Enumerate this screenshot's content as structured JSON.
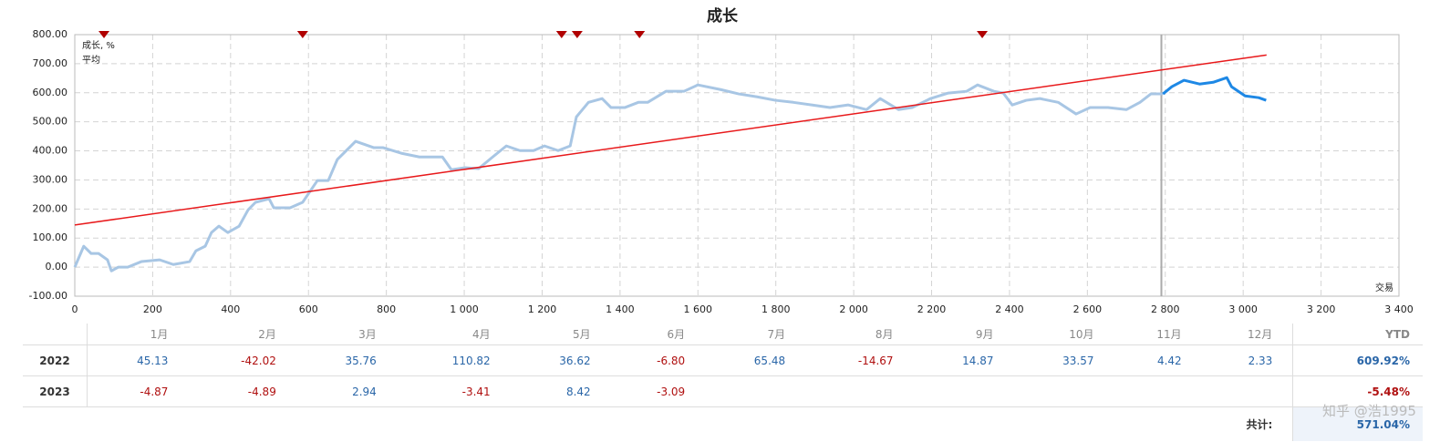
{
  "chart_data": {
    "type": "line",
    "title": "成长",
    "x_label": "交易",
    "grid": true,
    "legend": "top-left",
    "xlim": [
      0,
      3400
    ],
    "xticks": [
      0,
      200,
      400,
      600,
      800,
      {
        "value": 1000,
        "label": "1 000"
      },
      {
        "value": 1200,
        "label": "1 200"
      },
      {
        "value": 1400,
        "label": "1 400"
      },
      {
        "value": 1600,
        "label": "1 600"
      },
      {
        "value": 1800,
        "label": "1 800"
      },
      {
        "value": 2000,
        "label": "2 000"
      },
      {
        "value": 2200,
        "label": "2 200"
      },
      {
        "value": 2400,
        "label": "2 400"
      },
      {
        "value": 2600,
        "label": "2 600"
      },
      {
        "value": 2800,
        "label": "2 800"
      },
      {
        "value": 3000,
        "label": "3 000"
      },
      {
        "value": 3200,
        "label": "3 200"
      },
      {
        "value": 3400,
        "label": "3 400"
      }
    ],
    "ylim": [
      -100,
      800
    ],
    "yticks": [
      {
        "value": -100,
        "label": "-100.00"
      },
      {
        "value": 0,
        "label": "0.00"
      },
      {
        "value": 100,
        "label": "100.00"
      },
      {
        "value": 200,
        "label": "200.00"
      },
      {
        "value": 300,
        "label": "300.00"
      },
      {
        "value": 400,
        "label": "400.00"
      },
      {
        "value": 500,
        "label": "500.00"
      },
      {
        "value": 600,
        "label": "600.00"
      },
      {
        "value": 700,
        "label": "700.00"
      },
      {
        "value": 800,
        "label": "800.00"
      }
    ],
    "marker_line_x": 2790,
    "recent_color": "#1e88e5",
    "event_color": "#b00000",
    "events_x": [
      75,
      585,
      1250,
      1290,
      1450,
      2330
    ],
    "series": [
      {
        "name": "成长, %",
        "color": "#a8c6e4",
        "legend_color": "#1e6fc0",
        "x": [
          0,
          23,
          42,
          61,
          84,
          94,
          112,
          136,
          171,
          218,
          253,
          295,
          311,
          335,
          351,
          370,
          393,
          422,
          445,
          464,
          499,
          511,
          553,
          585,
          623,
          651,
          674,
          721,
          768,
          792,
          838,
          885,
          944,
          967,
          1002,
          1037,
          1073,
          1108,
          1143,
          1178,
          1206,
          1241,
          1272,
          1288,
          1319,
          1354,
          1377,
          1412,
          1447,
          1471,
          1518,
          1564,
          1600,
          1658,
          1705,
          1752,
          1799,
          1845,
          1892,
          1939,
          1986,
          2033,
          2068,
          2115,
          2150,
          2197,
          2243,
          2290,
          2318,
          2360,
          2384,
          2407,
          2443,
          2478,
          2525,
          2571,
          2607,
          2653,
          2700,
          2735,
          2763,
          2794,
          2817,
          2848,
          2888,
          2923,
          2958,
          2970,
          3005,
          3040,
          3059
        ],
        "values": [
          0,
          72,
          47,
          47,
          25,
          -13,
          0,
          0,
          19,
          25,
          9,
          19,
          56,
          72,
          119,
          141,
          119,
          141,
          197,
          223,
          235,
          204,
          204,
          223,
          298,
          298,
          370,
          433,
          411,
          411,
          392,
          379,
          379,
          335,
          342,
          339,
          379,
          417,
          401,
          401,
          417,
          401,
          417,
          517,
          567,
          580,
          549,
          549,
          567,
          567,
          605,
          605,
          627,
          611,
          596,
          586,
          574,
          567,
          558,
          549,
          558,
          542,
          580,
          542,
          549,
          580,
          599,
          605,
          627,
          605,
          599,
          558,
          574,
          580,
          567,
          527,
          549,
          549,
          542,
          567,
          596,
          596,
          621,
          643,
          630,
          636,
          652,
          621,
          589,
          583,
          574
        ]
      },
      {
        "name": "平均",
        "color": "#e8191b",
        "x": [
          0,
          3060
        ],
        "values": [
          145,
          730
        ]
      }
    ]
  },
  "table": {
    "headers": [
      "1月",
      "2月",
      "3月",
      "4月",
      "5月",
      "6月",
      "7月",
      "8月",
      "9月",
      "10月",
      "11月",
      "12月",
      "YTD"
    ],
    "rows": [
      {
        "year": "2022",
        "values": [
          "45.13",
          "-42.02",
          "35.76",
          "110.82",
          "36.62",
          "-6.80",
          "65.48",
          "-14.67",
          "14.87",
          "33.57",
          "4.42",
          "2.33"
        ],
        "ytd": "609.92%"
      },
      {
        "year": "2023",
        "values": [
          "-4.87",
          "-4.89",
          "2.94",
          "-3.41",
          "8.42",
          "-3.09"
        ],
        "ytd": "-5.48%"
      }
    ],
    "total_label": "共计:",
    "total": "571.04%"
  },
  "watermark": "知乎 @浩1995"
}
